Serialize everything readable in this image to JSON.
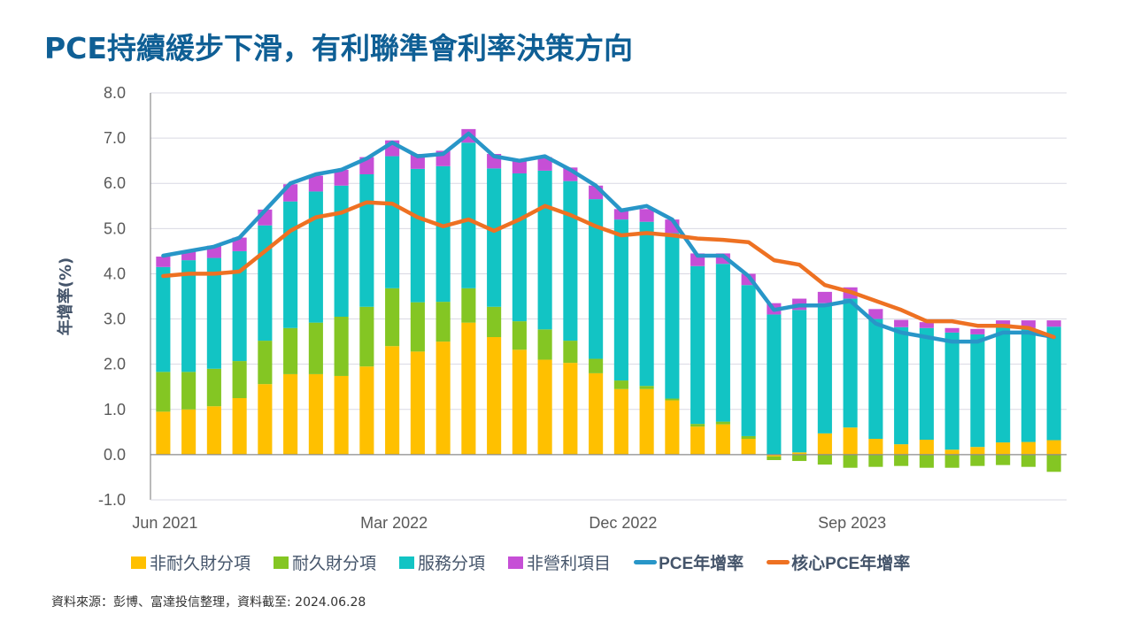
{
  "title": "PCE持續緩步下滑，有利聯準會利率決策方向",
  "source": "資料來源：彭博、富達投信整理，資料截至: 2024.06.28",
  "colors": {
    "title": "#0f5f95",
    "nondurable": "#ffc000",
    "durable": "#84c623",
    "services": "#12c4c4",
    "nonprofit": "#c64fd6",
    "pce": "#2896c8",
    "core_pce": "#ee7122"
  },
  "chart_data": {
    "type": "bar",
    "stacked": true,
    "title": "PCE持續緩步下滑，有利聯準會利率決策方向",
    "xlabel": "",
    "ylabel": "年增率(%)",
    "ylim": [
      -1.0,
      8.0
    ],
    "yticks": [
      "8.0",
      "7.0",
      "6.0",
      "5.0",
      "4.0",
      "3.0",
      "2.0",
      "1.0",
      "0.0",
      "-1.0"
    ],
    "ytick_values": [
      8,
      7,
      6,
      5,
      4,
      3,
      2,
      1,
      0,
      -1
    ],
    "xtick_labels": [
      {
        "index": 0,
        "label": "Jun 2021"
      },
      {
        "index": 9,
        "label": "Mar 2022"
      },
      {
        "index": 18,
        "label": "Dec 2022"
      },
      {
        "index": 27,
        "label": "Sep 2023"
      }
    ],
    "grid": true,
    "legend_position": "bottom",
    "categories": [
      "Jun 2021",
      "Jul 2021",
      "Aug 2021",
      "Sep 2021",
      "Oct 2021",
      "Nov 2021",
      "Dec 2021",
      "Jan 2022",
      "Feb 2022",
      "Mar 2022",
      "Apr 2022",
      "May 2022",
      "Jun 2022",
      "Jul 2022",
      "Aug 2022",
      "Sep 2022",
      "Oct 2022",
      "Nov 2022",
      "Dec 2022",
      "Jan 2023",
      "Feb 2023",
      "Mar 2023",
      "Apr 2023",
      "May 2023",
      "Jun 2023",
      "Jul 2023",
      "Aug 2023",
      "Sep 2023",
      "Oct 2023",
      "Nov 2023",
      "Dec 2023",
      "Jan 2024",
      "Feb 2024",
      "Mar 2024",
      "Apr 2024",
      "May 2024"
    ],
    "series": [
      {
        "name": "非耐久財分項",
        "kind": "bar",
        "color_key": "nondurable",
        "values": [
          0.95,
          1.0,
          1.07,
          1.25,
          1.56,
          1.78,
          1.78,
          1.74,
          1.95,
          2.4,
          2.28,
          2.5,
          2.92,
          2.6,
          2.32,
          2.1,
          2.03,
          1.8,
          1.45,
          1.45,
          1.2,
          0.62,
          0.67,
          0.35,
          -0.04,
          0.05,
          0.47,
          0.6,
          0.35,
          0.23,
          0.33,
          0.11,
          0.17,
          0.27,
          0.28,
          0.32
        ]
      },
      {
        "name": "耐久財分項",
        "kind": "bar",
        "color_key": "durable",
        "values": [
          0.88,
          0.83,
          0.83,
          0.82,
          0.96,
          1.02,
          1.14,
          1.31,
          1.32,
          1.28,
          1.09,
          0.88,
          0.76,
          0.67,
          0.63,
          0.67,
          0.49,
          0.32,
          0.19,
          0.07,
          0.04,
          0.06,
          0.06,
          0.06,
          -0.08,
          -0.14,
          -0.22,
          -0.29,
          -0.27,
          -0.25,
          -0.29,
          -0.29,
          -0.25,
          -0.23,
          -0.27,
          -0.38
        ]
      },
      {
        "name": "服務分項",
        "kind": "bar",
        "color_key": "services",
        "values": [
          2.32,
          2.47,
          2.45,
          2.43,
          2.55,
          2.8,
          2.9,
          2.9,
          2.93,
          2.92,
          2.95,
          3.0,
          3.22,
          3.06,
          3.27,
          3.51,
          3.53,
          3.53,
          3.56,
          3.63,
          3.66,
          3.49,
          3.49,
          3.34,
          3.1,
          3.15,
          2.88,
          2.85,
          2.65,
          2.59,
          2.47,
          2.59,
          2.49,
          2.55,
          2.52,
          2.51
        ]
      },
      {
        "name": "非營利項目",
        "kind": "bar",
        "color_key": "nonprofit",
        "values": [
          0.23,
          0.2,
          0.27,
          0.3,
          0.35,
          0.38,
          0.35,
          0.35,
          0.38,
          0.35,
          0.33,
          0.34,
          0.3,
          0.32,
          0.28,
          0.3,
          0.3,
          0.3,
          0.23,
          0.28,
          0.3,
          0.28,
          0.23,
          0.25,
          0.25,
          0.25,
          0.25,
          0.25,
          0.22,
          0.16,
          0.13,
          0.1,
          0.12,
          0.15,
          0.17,
          0.14
        ]
      },
      {
        "name": "PCE年增率",
        "kind": "line",
        "color_key": "pce",
        "values": [
          4.4,
          4.5,
          4.6,
          4.8,
          5.4,
          6.0,
          6.2,
          6.3,
          6.55,
          6.9,
          6.6,
          6.65,
          7.1,
          6.6,
          6.5,
          6.6,
          6.3,
          5.95,
          5.4,
          5.5,
          5.2,
          4.4,
          4.4,
          3.95,
          3.2,
          3.3,
          3.3,
          3.4,
          2.9,
          2.7,
          2.6,
          2.5,
          2.5,
          2.7,
          2.7,
          2.6
        ]
      },
      {
        "name": "核心PCE年增率",
        "kind": "line",
        "color_key": "core_pce",
        "values": [
          3.95,
          4.0,
          4.0,
          4.05,
          4.5,
          4.95,
          5.25,
          5.35,
          5.58,
          5.55,
          5.25,
          5.05,
          5.2,
          4.95,
          5.2,
          5.5,
          5.3,
          5.05,
          4.85,
          4.9,
          4.85,
          4.78,
          4.75,
          4.7,
          4.3,
          4.2,
          3.75,
          3.6,
          3.4,
          3.2,
          2.95,
          2.95,
          2.85,
          2.85,
          2.8,
          2.6
        ]
      }
    ]
  },
  "legend": [
    {
      "label": "非耐久財分項",
      "type": "box",
      "color_key": "nondurable"
    },
    {
      "label": "耐久財分項",
      "type": "box",
      "color_key": "durable"
    },
    {
      "label": "服務分項",
      "type": "box",
      "color_key": "services"
    },
    {
      "label": "非營利項目",
      "type": "box",
      "color_key": "nonprofit"
    },
    {
      "label": "PCE年增率",
      "type": "line",
      "color_key": "pce"
    },
    {
      "label": "核心PCE年增率",
      "type": "line",
      "color_key": "core_pce"
    }
  ]
}
